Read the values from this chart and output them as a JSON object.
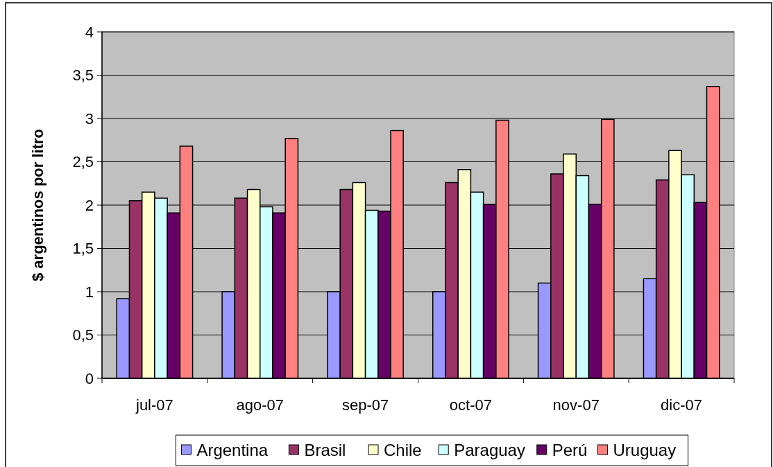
{
  "chart_data": {
    "type": "bar",
    "ylabel": "$ argentinos por litro",
    "categories": [
      "jul-07",
      "ago-07",
      "sep-07",
      "oct-07",
      "nov-07",
      "dic-07"
    ],
    "series": [
      {
        "name": "Argentina",
        "color": "#9999ff",
        "values": [
          0.92,
          1.0,
          1.0,
          1.0,
          1.1,
          1.15
        ]
      },
      {
        "name": "Brasil",
        "color": "#993366",
        "values": [
          2.05,
          2.08,
          2.18,
          2.26,
          2.36,
          2.29
        ]
      },
      {
        "name": "Chile",
        "color": "#ffffcc",
        "values": [
          2.15,
          2.18,
          2.26,
          2.41,
          2.59,
          2.63
        ]
      },
      {
        "name": "Paraguay",
        "color": "#ccffff",
        "values": [
          2.08,
          1.98,
          1.94,
          2.15,
          2.34,
          2.35
        ]
      },
      {
        "name": "Perú",
        "color": "#660066",
        "values": [
          1.91,
          1.91,
          1.93,
          2.01,
          2.01,
          2.03
        ]
      },
      {
        "name": "Uruguay",
        "color": "#ff8080",
        "values": [
          2.68,
          2.77,
          2.86,
          2.98,
          2.99,
          3.37
        ]
      }
    ],
    "ylim": [
      0,
      4
    ],
    "yticks": [
      0,
      {
        "value": 0.5,
        "label": "0,5"
      },
      1,
      {
        "value": 1.5,
        "label": "1,5"
      },
      2,
      {
        "value": 2.5,
        "label": "2,5"
      },
      3,
      {
        "value": 3.5,
        "label": "3,5"
      },
      4
    ],
    "grid": "y",
    "legend": "bottom"
  }
}
